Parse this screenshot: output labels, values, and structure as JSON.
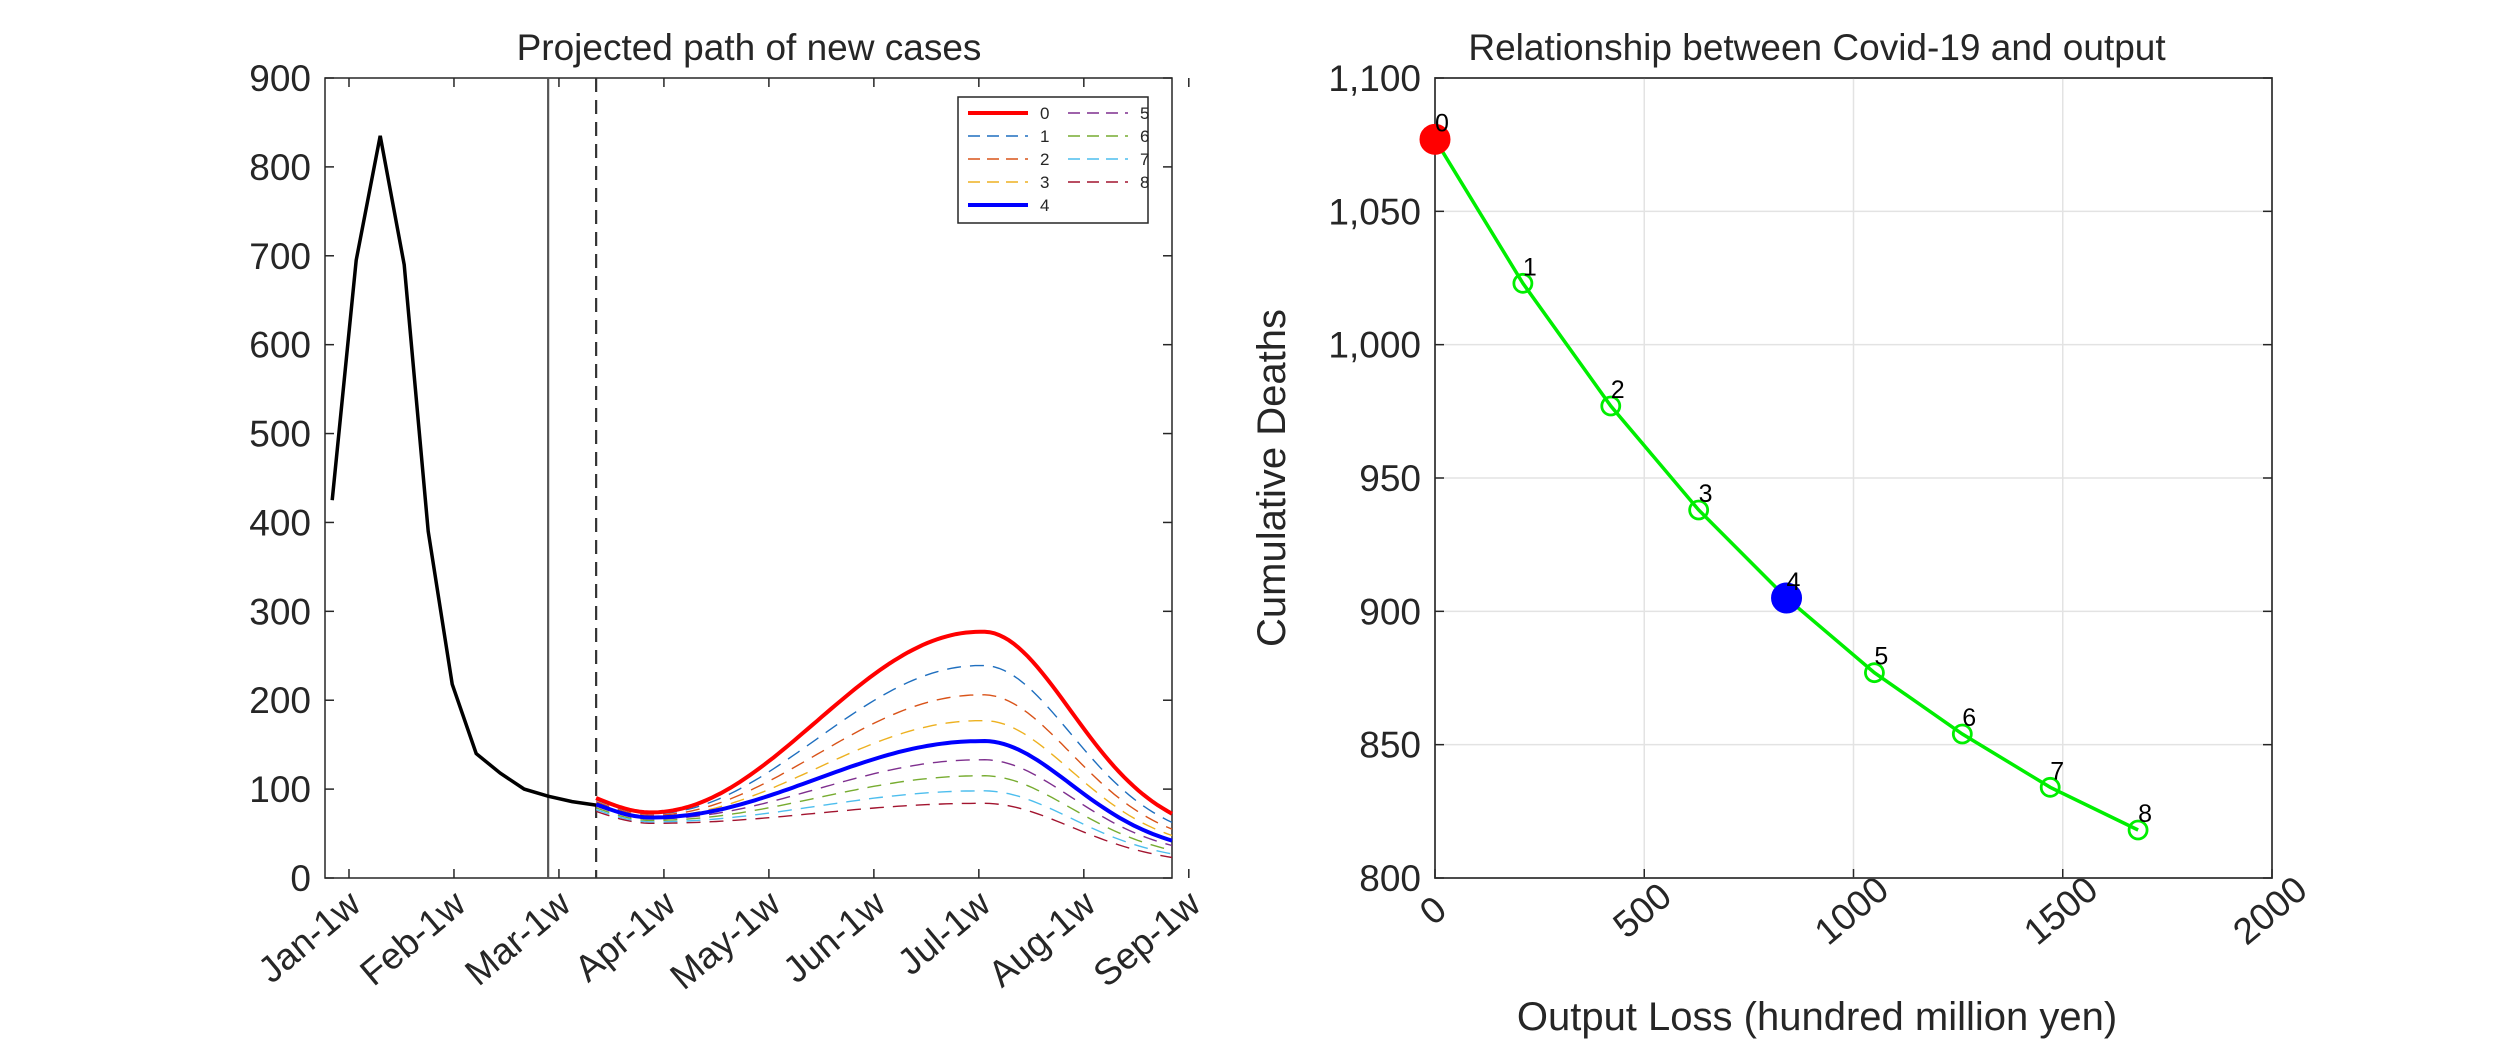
{
  "chart_data": [
    {
      "type": "line",
      "title": "Projected path of new cases",
      "xlabel": "",
      "ylabel": "",
      "ylim": [
        0,
        900
      ],
      "yticks": [
        "0",
        "100",
        "200",
        "300",
        "400",
        "500",
        "600",
        "700",
        "800",
        "900"
      ],
      "xtick_labels": [
        "Jan-1w",
        "Feb-1w",
        "Mar-1w",
        "Apr-1w",
        "May-1w",
        "Jun-1w",
        "Jul-1w",
        "Aug-1w",
        "Sep-1w"
      ],
      "grid": false,
      "legend_position": "top-right",
      "history": {
        "weeks": [
          0,
          1,
          2,
          3,
          4,
          5,
          6,
          7,
          8,
          9,
          10,
          11
        ],
        "values": [
          425,
          695,
          835,
          690,
          390,
          218,
          140,
          118,
          100,
          92,
          86,
          82
        ]
      },
      "projection": {
        "start_week": 11,
        "end_week": 35,
        "peak_week": 27,
        "series": [
          {
            "name": "0",
            "start": 90,
            "peak": 277,
            "end": 52,
            "color": "#ff0000",
            "style": "solid"
          },
          {
            "name": "1",
            "start": 88,
            "peak": 239,
            "end": 45,
            "color": "#1f6fbf",
            "style": "dashed"
          },
          {
            "name": "2",
            "start": 86,
            "peak": 206,
            "end": 40,
            "color": "#d95319",
            "style": "dashed"
          },
          {
            "name": "3",
            "start": 84,
            "peak": 177,
            "end": 35,
            "color": "#edb120",
            "style": "dashed"
          },
          {
            "name": "4",
            "start": 83,
            "peak": 154,
            "end": 31,
            "color": "#0000ff",
            "style": "solid"
          },
          {
            "name": "5",
            "start": 81,
            "peak": 133,
            "end": 27,
            "color": "#7e2f8e",
            "style": "dashed"
          },
          {
            "name": "6",
            "start": 79,
            "peak": 115,
            "end": 23,
            "color": "#77ac30",
            "style": "dashed"
          },
          {
            "name": "7",
            "start": 77,
            "peak": 98,
            "end": 20,
            "color": "#4dbeee",
            "style": "dashed"
          },
          {
            "name": "8",
            "start": 75,
            "peak": 84,
            "end": 17,
            "color": "#a2142f",
            "style": "dashed"
          }
        ]
      },
      "vertical_lines": [
        {
          "week": 9,
          "style": "solid"
        },
        {
          "week": 11,
          "style": "dashed"
        }
      ]
    },
    {
      "type": "scatter",
      "title": "Relationship between Covid-19 and output",
      "xlabel": "Output Loss (hundred million yen)",
      "ylabel": "Cumulative Deaths",
      "xlim": [
        0,
        2000
      ],
      "ylim": [
        800,
        1100
      ],
      "xticks": [
        "0",
        "500",
        "1000",
        "1500",
        "2000"
      ],
      "yticks": [
        "800",
        "850",
        "900",
        "950",
        "1,000",
        "1,050",
        "1,100"
      ],
      "grid": true,
      "points": [
        {
          "label": "0",
          "x": 0,
          "y": 1077,
          "color": "#ff0000",
          "filled": true
        },
        {
          "label": "1",
          "x": 210,
          "y": 1023,
          "color": "#00ee00",
          "filled": false
        },
        {
          "label": "2",
          "x": 420,
          "y": 977,
          "color": "#00ee00",
          "filled": false
        },
        {
          "label": "3",
          "x": 630,
          "y": 938,
          "color": "#00ee00",
          "filled": false
        },
        {
          "label": "4",
          "x": 840,
          "y": 905,
          "color": "#0000ff",
          "filled": true
        },
        {
          "label": "5",
          "x": 1050,
          "y": 877,
          "color": "#00ee00",
          "filled": false
        },
        {
          "label": "6",
          "x": 1260,
          "y": 854,
          "color": "#00ee00",
          "filled": false
        },
        {
          "label": "7",
          "x": 1470,
          "y": 834,
          "color": "#00ee00",
          "filled": false
        },
        {
          "label": "8",
          "x": 1680,
          "y": 818,
          "color": "#00ee00",
          "filled": false
        }
      ],
      "line_color": "#00ee00"
    }
  ]
}
